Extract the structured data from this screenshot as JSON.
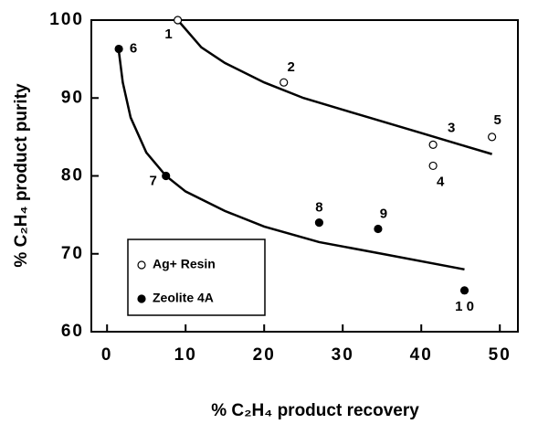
{
  "chart_data": {
    "type": "scatter",
    "xlabel": "% C₂H₄ product recovery",
    "ylabel": "% C₂H₄ product purity",
    "xlim": [
      -2,
      52.3
    ],
    "ylim": [
      60,
      100
    ],
    "xticks": [
      0,
      10,
      20,
      30,
      40,
      50
    ],
    "yticks": [
      60,
      70,
      80,
      90,
      100
    ],
    "series": [
      {
        "name": "Ag+ Resin",
        "color": "#000",
        "fill": "#fff",
        "x": [
          9,
          22.5,
          41.5,
          41.5,
          49
        ],
        "values": [
          100,
          92,
          84,
          81.3,
          85
        ],
        "labels": [
          "1",
          "2",
          "3",
          "4",
          "5"
        ]
      },
      {
        "name": "Zeolite 4A",
        "color": "#000",
        "fill": "#000",
        "x": [
          1.5,
          7.5,
          27,
          34.5,
          45.5
        ],
        "values": [
          96.3,
          80,
          74,
          73.2,
          65.3
        ],
        "labels": [
          "6",
          "7",
          "8",
          "9",
          "1 0"
        ]
      }
    ],
    "curves": [
      {
        "x": [
          9,
          12,
          15,
          20,
          25,
          30,
          35,
          40,
          45,
          49
        ],
        "values": [
          100,
          96.5,
          94.5,
          92,
          90,
          88.5,
          87,
          85.5,
          84,
          82.8
        ]
      },
      {
        "x": [
          1.5,
          2,
          3,
          5,
          7.5,
          10,
          15,
          20,
          27,
          35,
          45.5
        ],
        "values": [
          96,
          92,
          87.5,
          83,
          80,
          78,
          75.5,
          73.5,
          71.5,
          70,
          68
        ]
      }
    ]
  }
}
